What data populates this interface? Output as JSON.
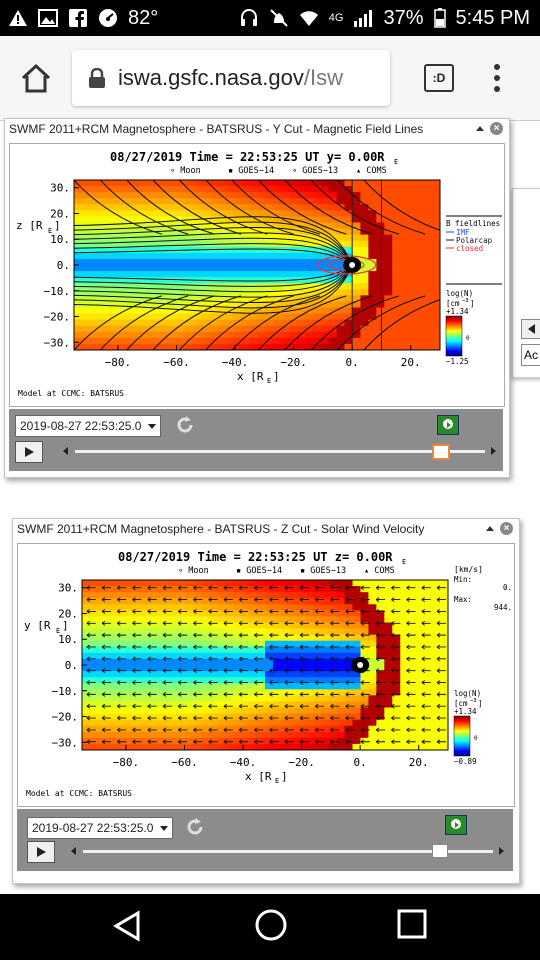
{
  "status_bar": {
    "temperature": "82°",
    "network": "4G",
    "battery": "37%",
    "time": "5:45 PM"
  },
  "browser": {
    "domain": "iswa.gsfc.nasa.gov",
    "path": "/Isw",
    "tabs_label": ":D"
  },
  "side_panel": {
    "text": "Ac"
  },
  "panels": [
    {
      "title": "SWMF 2011+RCM Magnetosphere - BATSRUS - Y Cut - Magnetic Field Lines",
      "header": "08/27/2019 Time = 22:53:25 UT y= 0.00R",
      "header_sub": "E",
      "satellites": [
        "∘ Moon",
        "▪ GOES−14",
        "∘ GOES−13",
        "▴ COMS"
      ],
      "yaxis_label": "z [R",
      "yaxis_sub": "E",
      "xaxis_label": "x [R",
      "xaxis_sub": "E",
      "y_ticks": [
        "30.",
        "20.",
        "10.",
        "0.",
        "−10.",
        "−20.",
        "−30."
      ],
      "x_ticks": [
        "−80.",
        "−60.",
        "−40.",
        "−20.",
        "0.",
        "20."
      ],
      "legend_title": "B fieldlines",
      "legend_items": [
        {
          "label": "IMF",
          "color": "#2244ff"
        },
        {
          "label": "Polarcap",
          "color": "#111111"
        },
        {
          "label": "closed",
          "color": "#ff2222"
        }
      ],
      "colorbar_label": "log(N)",
      "colorbar_unit": "[cm",
      "colorbar_unit_exp": "−3",
      "colorbar_unit_end": "]",
      "colorbar_max": "+1.34",
      "colorbar_mid": "0",
      "colorbar_min": "−1.25",
      "model_credit": "Model at CCMC: BATSRUS",
      "datetime": "2019-08-27 22:53:25.0",
      "slider_fraction": 0.89
    },
    {
      "title": "SWMF 2011+RCM Magnetosphere - BATSRUS - Z Cut - Solar Wind Velocity",
      "header": "08/27/2019 Time = 22:53:25 UT z= 0.00R",
      "header_sub": "E",
      "satellites": [
        "∘ Moon",
        "▪ GOES−14",
        "▪ GOES−13",
        "▴ COMS"
      ],
      "yaxis_label": "y [R",
      "yaxis_sub": "E",
      "xaxis_label": "x [R",
      "xaxis_sub": "E",
      "y_ticks": [
        "30.",
        "20.",
        "10.",
        "0.",
        "−10.",
        "−20.",
        "−30."
      ],
      "x_ticks": [
        "−80.",
        "−60.",
        "−40.",
        "−20.",
        "0.",
        "20."
      ],
      "velocity_unit": "[km/s]",
      "min_label": "Min:",
      "min_value": "0.",
      "max_label": "Max:",
      "max_value": "944.",
      "colorbar_label": "log(N)",
      "colorbar_unit": "[cm",
      "colorbar_unit_exp": "−3",
      "colorbar_unit_end": "]",
      "colorbar_max": "+1.34",
      "colorbar_mid": "0",
      "colorbar_min": "−0.89",
      "model_credit": "Model at CCMC: BATSRUS",
      "datetime": "2019-08-27 22:53:25.0",
      "slider_fraction": 0.87
    }
  ]
}
